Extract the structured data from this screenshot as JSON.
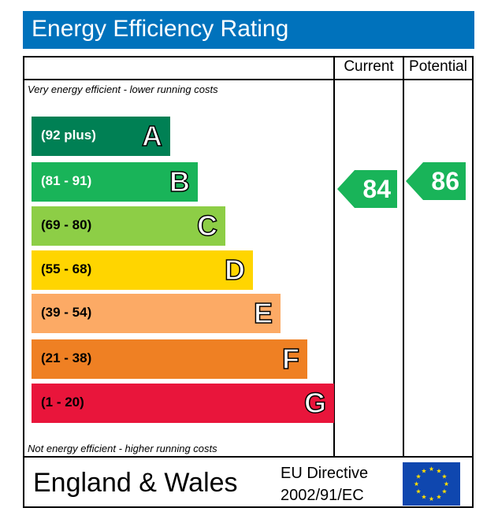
{
  "header": {
    "title": "Energy Efficiency Rating"
  },
  "columns": {
    "current": "Current",
    "potential": "Potential"
  },
  "notes": {
    "top": "Very energy efficient - lower running costs",
    "bottom": "Not energy efficient - higher running costs"
  },
  "chart_data": {
    "type": "bar",
    "bands": [
      {
        "range": "(92 plus)",
        "letter": "A",
        "color": "#008054",
        "text_color": "#ffffff"
      },
      {
        "range": "(81 - 91)",
        "letter": "B",
        "color": "#19b459",
        "text_color": "#ffffff"
      },
      {
        "range": "(69 - 80)",
        "letter": "C",
        "color": "#8dce46",
        "text_color": "#000000"
      },
      {
        "range": "(55 - 68)",
        "letter": "D",
        "color": "#ffd500",
        "text_color": "#000000"
      },
      {
        "range": "(39 - 54)",
        "letter": "E",
        "color": "#fcaa65",
        "text_color": "#000000"
      },
      {
        "range": "(21 - 38)",
        "letter": "F",
        "color": "#ef8023",
        "text_color": "#000000"
      },
      {
        "range": "(1 - 20)",
        "letter": "G",
        "color": "#e9153b",
        "text_color": "#000000"
      }
    ],
    "current": {
      "value": 84,
      "band": "B",
      "color": "#19b459"
    },
    "potential": {
      "value": 86,
      "band": "B",
      "color": "#19b459"
    }
  },
  "footer": {
    "region": "England & Wales",
    "directive_line1": "EU Directive",
    "directive_line2": "2002/91/EC"
  }
}
